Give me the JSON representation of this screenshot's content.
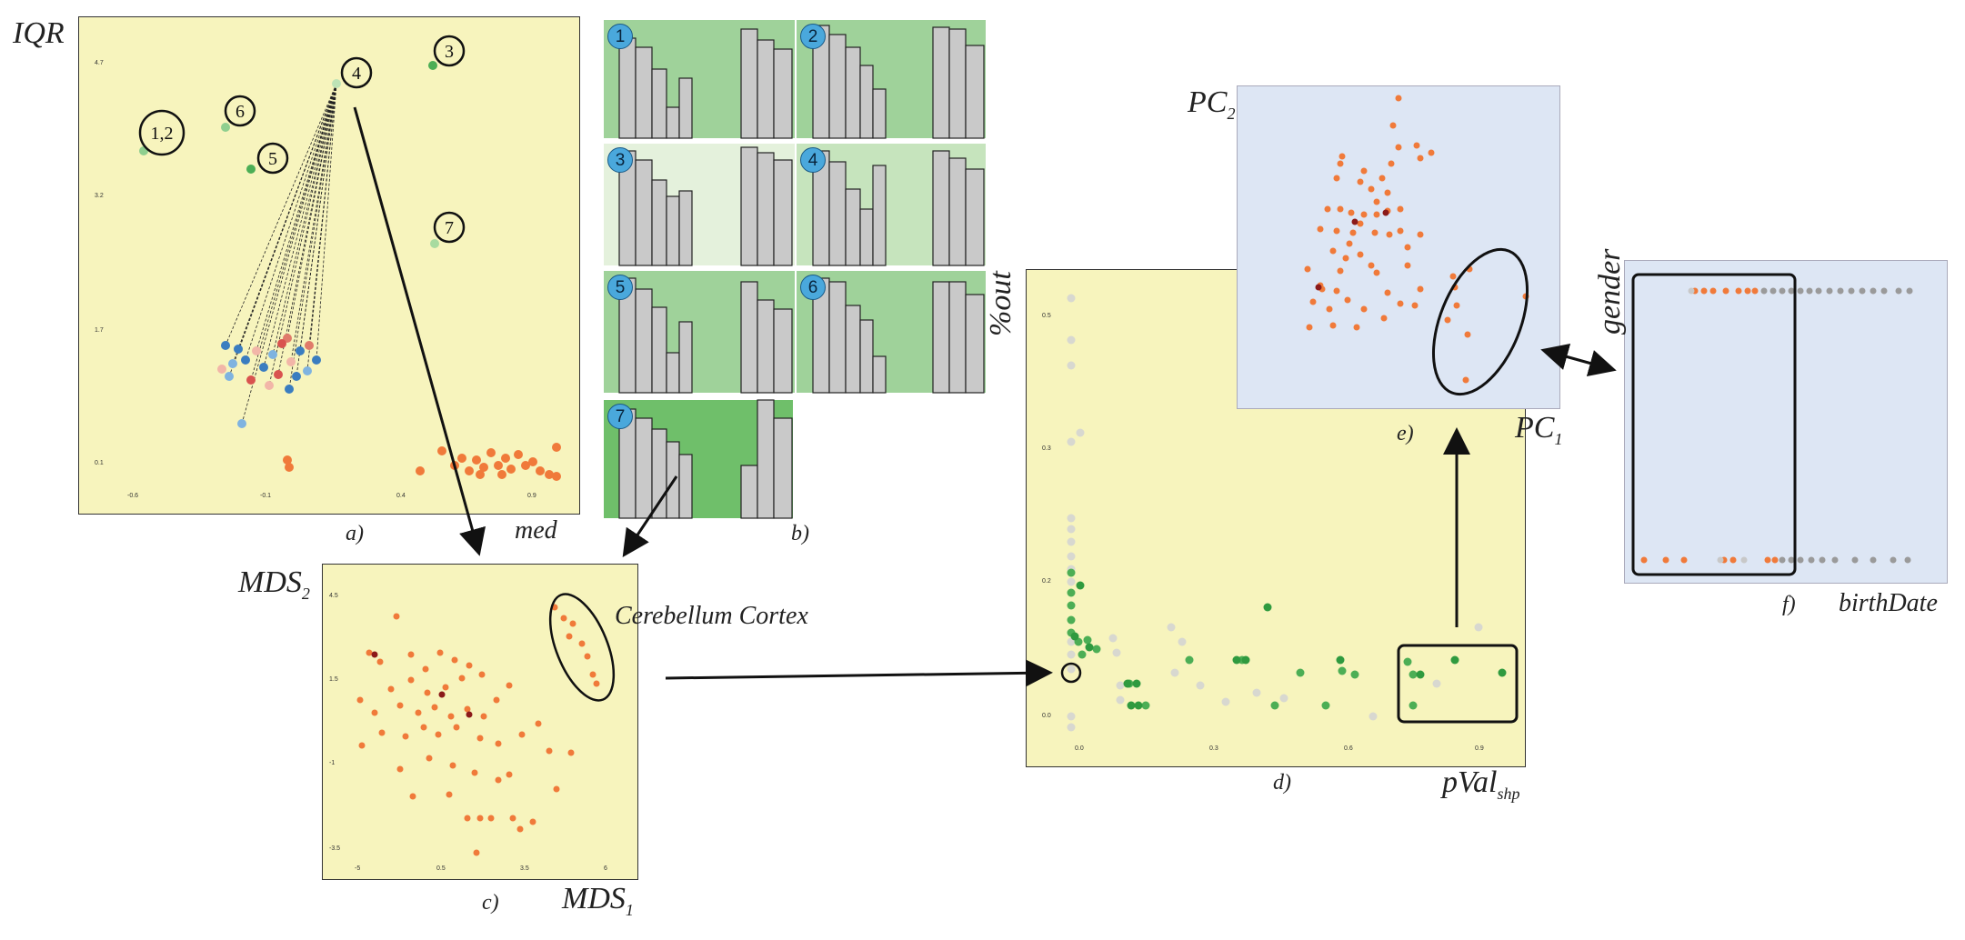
{
  "panels": {
    "a": {
      "caption": "a)",
      "xlabel": "med",
      "ylabel": "IQR",
      "xticks": [
        "-0.6",
        "-0.1",
        "0.4",
        "0.9"
      ],
      "yticks": [
        "4.7",
        "3.2",
        "1.7",
        "0.1"
      ],
      "clusters": [
        "1,2",
        "3",
        "4",
        "5",
        "6",
        "7"
      ]
    },
    "b": {
      "caption": "b)",
      "badges": [
        "1",
        "2",
        "3",
        "4",
        "5",
        "6",
        "7"
      ]
    },
    "c": {
      "caption": "c)",
      "xlabel": "MDS",
      "xlabel_sub": "1",
      "ylabel": "MDS",
      "ylabel_sub": "2",
      "annotation": "Cerebellum Cortex",
      "xticks": [
        "-5",
        "0.5",
        "3.5",
        "6"
      ],
      "yticks": [
        "4.5",
        "1.5",
        "-1",
        "-3.5"
      ]
    },
    "d": {
      "caption": "d)",
      "xlabel": "pVal",
      "xlabel_sub": "shp",
      "ylabel": "%out",
      "xticks": [
        "0.0",
        "0.3",
        "0.6",
        "0.9"
      ],
      "yticks": [
        "0.5",
        "0.3",
        "0.2",
        "0.0"
      ]
    },
    "e": {
      "caption": "e)",
      "xlabel": "PC",
      "xlabel_sub": "1",
      "ylabel": "PC",
      "ylabel_sub": "2"
    },
    "f": {
      "caption": "f)",
      "xlabel": "birthDate",
      "ylabel": "gender"
    }
  },
  "colors": {
    "panel_yellow": "#f7f4bd",
    "panel_blue": "#dde6f4",
    "orange_point": "#f07a3a",
    "dark_red_point": "#8b1a1a",
    "green_point": "#4cae55",
    "dark_green_point": "#2f9a3f",
    "light_gray_point": "#d8d8d0",
    "gray_point": "#9a9a9a",
    "blue_point": "#3a7dc0",
    "light_blue_point": "#7fb3e0",
    "hist_green": "#9fd29a",
    "hist_pale_green": "#e4f1dc",
    "hist_mid_green": "#c6e4bd",
    "hist_dark_green": "#6fbf6a",
    "bar_gray": "#c9c9c9",
    "badge_blue": "#4aa8dc"
  }
}
